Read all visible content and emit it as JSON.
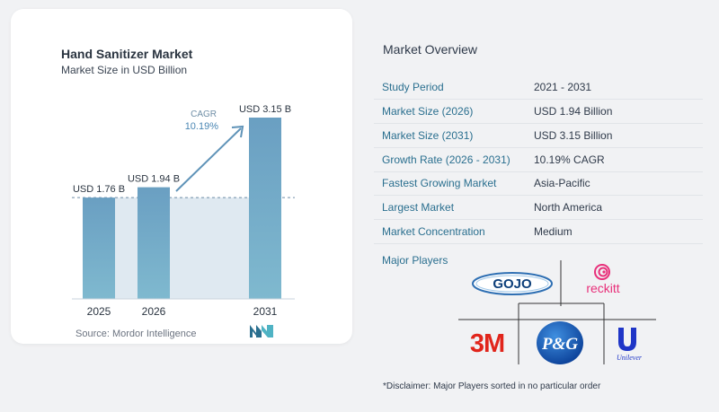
{
  "chart_data": {
    "type": "bar",
    "title": "Hand Sanitizer Market",
    "subtitle": "Market Size in USD Billion",
    "categories": [
      "2025",
      "2026",
      "2031"
    ],
    "values": [
      1.76,
      1.94,
      3.15
    ],
    "data_labels": [
      "USD 1.76 B",
      "USD 1.94 B",
      "USD 3.15 B"
    ],
    "ylim": [
      0,
      3.15
    ],
    "cagr_label": "CAGR",
    "cagr_value": "10.19%",
    "bar_color": "#6a9fc2",
    "bar_color_bottom": "#7fb9cf",
    "shade_color": "#dfe9f1",
    "legend": "none",
    "grid": false
  },
  "source": "Source:  Mordor Intelligence",
  "overview": {
    "title": "Market Overview",
    "rows": [
      {
        "label": "Study Period",
        "value": "2021 - 2031"
      },
      {
        "label": "Market Size (2026)",
        "value": "USD 1.94 Billion"
      },
      {
        "label": "Market Size (2031)",
        "value": "USD 3.15 Billion"
      },
      {
        "label": "Growth Rate (2026 - 2031)",
        "value": "10.19% CAGR"
      },
      {
        "label": "Fastest Growing Market",
        "value": "Asia-Pacific"
      },
      {
        "label": "Largest Market",
        "value": "North America"
      },
      {
        "label": "Market Concentration",
        "value": "Medium"
      }
    ]
  },
  "players": {
    "title": "Major Players",
    "logos": [
      {
        "name": "GOJO",
        "icon": "gojo-logo"
      },
      {
        "name": "reckitt",
        "icon": "reckitt-logo"
      },
      {
        "name": "3M",
        "icon": "3m-logo"
      },
      {
        "name": "P&G",
        "icon": "pg-logo"
      },
      {
        "name": "Unilever",
        "icon": "unilever-logo"
      }
    ]
  },
  "disclaimer": "*Disclaimer: Major Players sorted in no particular order"
}
